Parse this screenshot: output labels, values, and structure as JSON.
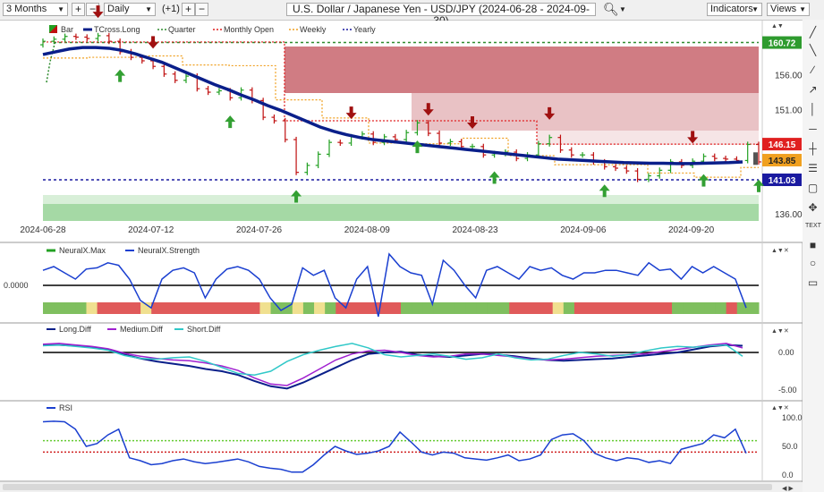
{
  "toolbar": {
    "period": "3 Months",
    "interval": "Daily",
    "offset": "(+1)",
    "symbol_title": "U.S. Dollar / Japanese Yen - USD/JPY (2024-06-28 - 2024-09-30)",
    "indicators_label": "Indicators",
    "views_label": "Views"
  },
  "colors": {
    "tcross": "#0a1f8a",
    "quarter": "#2e8b2e",
    "monthly_open": "#e02020",
    "weekly": "#f0a020",
    "yearly": "#1a1aa0",
    "bull_bar": "#22a022",
    "bear_bar": "#c01010",
    "resist_zone": "#c0505a",
    "support_zone": "#8fd08f"
  },
  "chart_data": [
    {
      "type": "line",
      "title": "",
      "legend": [
        "Bar",
        "TCross.Long",
        "Quarter",
        "Monthly Open",
        "Weekly",
        "Yearly"
      ],
      "x_ticks": [
        "2024-06-28",
        "2024-07-12",
        "2024-07-26",
        "2024-08-09",
        "2024-08-23",
        "2024-09-06",
        "2024-09-20"
      ],
      "y_ticks": [
        136.0,
        151.0,
        156.0
      ],
      "ylim": [
        135,
        164
      ],
      "price_tags": {
        "quarter": 160.72,
        "monthly_open": 146.15,
        "weekly": 143.85,
        "yearly": 141.03
      },
      "closes": [
        160.9,
        161.2,
        161.6,
        161.5,
        161.3,
        161.7,
        160.9,
        159.4,
        158.6,
        158.1,
        157.3,
        156.2,
        155.3,
        155.9,
        154.1,
        153.6,
        153.8,
        152.8,
        153.9,
        152.4,
        150.0,
        149.5,
        146.8,
        142.1,
        143.1,
        144.7,
        146.4,
        146.3,
        147.2,
        147.6,
        146.4,
        147.2,
        146.8,
        147.8,
        149.2,
        147.7,
        146.3,
        146.5,
        145.8,
        145.8,
        144.6,
        144.8,
        145.0,
        144.1,
        144.6,
        146.2,
        147.1,
        145.3,
        144.6,
        144.6,
        143.6,
        142.9,
        142.7,
        142.3,
        141.1,
        141.6,
        142.4,
        143.6,
        143.1,
        143.7,
        144.4,
        144.1,
        144.0,
        143.8,
        146.1,
        143.6
      ],
      "tcross_long": [
        159.0,
        159.4,
        159.8,
        160.0,
        160.0,
        159.9,
        159.6,
        159.1,
        158.5,
        157.9,
        157.1,
        156.3,
        155.5,
        154.7,
        154.0,
        153.2,
        152.5,
        151.7,
        151.0,
        150.2,
        149.4,
        148.6,
        148.0,
        147.5,
        147.1,
        146.8,
        146.6,
        146.4,
        146.2,
        146.0,
        145.8,
        145.6,
        145.4,
        145.2,
        145.0,
        144.8,
        144.6,
        144.4,
        144.2,
        144.0,
        143.9,
        143.8,
        143.7,
        143.6,
        143.5,
        143.45,
        143.4,
        143.4,
        143.35,
        143.35,
        143.4,
        143.45,
        143.5,
        143.6
      ],
      "signals_down": [
        4,
        8,
        23,
        29,
        32,
        38,
        49
      ],
      "signals_up": [
        6,
        14,
        19,
        28,
        34,
        42,
        50,
        54
      ]
    },
    {
      "type": "line",
      "legend": [
        "NeuralX.Max",
        "NeuralX.Strength"
      ],
      "y_ticks": [
        0.0
      ],
      "y_tick_labels": [
        "0.0000"
      ],
      "values": [
        0.12,
        0.15,
        0.1,
        0.05,
        0.13,
        0.14,
        0.18,
        0.16,
        0.05,
        -0.12,
        -0.18,
        0.05,
        0.12,
        0.14,
        0.1,
        -0.1,
        0.05,
        0.13,
        0.15,
        0.12,
        0.05,
        -0.1,
        -0.2,
        -0.15,
        0.14,
        0.08,
        0.12,
        -0.1,
        -0.18,
        0.05,
        0.15,
        -0.25,
        0.25,
        0.15,
        0.1,
        0.08,
        -0.15,
        0.2,
        0.12,
        0.0,
        -0.1,
        0.12,
        0.15,
        0.1,
        0.05,
        0.15,
        0.12,
        0.14,
        0.08,
        0.05,
        0.1,
        0.1,
        0.12,
        0.12,
        0.1,
        0.08,
        0.18,
        0.12,
        0.13,
        0.05,
        0.15,
        0.1,
        0.15,
        0.1,
        0.05,
        -0.18
      ]
    },
    {
      "type": "line",
      "legend": [
        "Long.Diff",
        "Medium.Diff",
        "Short.Diff"
      ],
      "y_ticks": [
        0.0,
        -5.0
      ],
      "y_tick_labels": [
        "0.00",
        "-5.00"
      ],
      "series": [
        {
          "name": "Long.Diff",
          "values": [
            1.0,
            1.0,
            0.9,
            0.7,
            0.4,
            -0.3,
            -0.8,
            -1.2,
            -1.5,
            -1.8,
            -2.2,
            -2.5,
            -3.0,
            -3.8,
            -4.5,
            -4.8,
            -4.0,
            -3.0,
            -2.0,
            -1.0,
            -0.2,
            0.0,
            0.1,
            -0.3,
            -0.5,
            -0.6,
            -0.4,
            -0.2,
            -0.3,
            -0.5,
            -0.8,
            -1.0,
            -1.1,
            -1.0,
            -0.9,
            -0.8,
            -0.6,
            -0.4,
            -0.2,
            0.0,
            0.4,
            0.8,
            1.0,
            0.9
          ]
        },
        {
          "name": "Medium.Diff",
          "values": [
            1.1,
            1.2,
            1.0,
            0.8,
            0.5,
            -0.1,
            -0.5,
            -0.8,
            -1.0,
            -1.1,
            -1.4,
            -1.8,
            -2.4,
            -3.4,
            -4.2,
            -4.4,
            -3.4,
            -2.2,
            -1.0,
            -0.2,
            0.2,
            0.3,
            0.0,
            -0.4,
            -0.6,
            -0.5,
            -0.2,
            -0.2,
            -0.4,
            -0.6,
            -0.9,
            -1.0,
            -0.9,
            -0.7,
            -0.5,
            -0.4,
            -0.3,
            -0.2,
            0.1,
            0.4,
            0.7,
            1.0,
            1.2,
            0.6
          ]
        },
        {
          "name": "Short.Diff",
          "values": [
            0.9,
            1.0,
            0.8,
            0.6,
            0.3,
            -0.4,
            -0.8,
            -0.9,
            -0.7,
            -0.6,
            -1.2,
            -2.0,
            -2.8,
            -3.0,
            -2.5,
            -1.2,
            -0.3,
            0.3,
            0.8,
            1.2,
            0.6,
            -0.3,
            -0.6,
            -0.4,
            -0.2,
            -0.5,
            -0.9,
            -0.7,
            -0.2,
            -0.7,
            -1.0,
            -0.9,
            -0.4,
            0.0,
            -0.2,
            -0.5,
            -0.3,
            0.2,
            0.6,
            0.8,
            0.7,
            0.9,
            1.0,
            -0.5
          ]
        }
      ]
    },
    {
      "type": "line",
      "legend": [
        "RSI"
      ],
      "y_ticks": [
        100.0,
        50.0,
        0.0
      ],
      "y_tick_labels": [
        "100.0",
        "50.0",
        "0.0"
      ],
      "thresholds": [
        60,
        40
      ],
      "values": [
        93,
        94,
        93,
        80,
        50,
        55,
        70,
        80,
        30,
        25,
        18,
        20,
        25,
        28,
        23,
        20,
        22,
        25,
        28,
        23,
        15,
        12,
        10,
        5,
        5,
        18,
        35,
        50,
        42,
        36,
        38,
        42,
        50,
        75,
        58,
        40,
        35,
        40,
        38,
        30,
        28,
        26,
        30,
        35,
        25,
        28,
        35,
        62,
        70,
        72,
        60,
        38,
        30,
        25,
        30,
        28,
        22,
        25,
        20,
        45,
        50,
        55,
        70,
        65,
        80,
        38
      ]
    }
  ]
}
